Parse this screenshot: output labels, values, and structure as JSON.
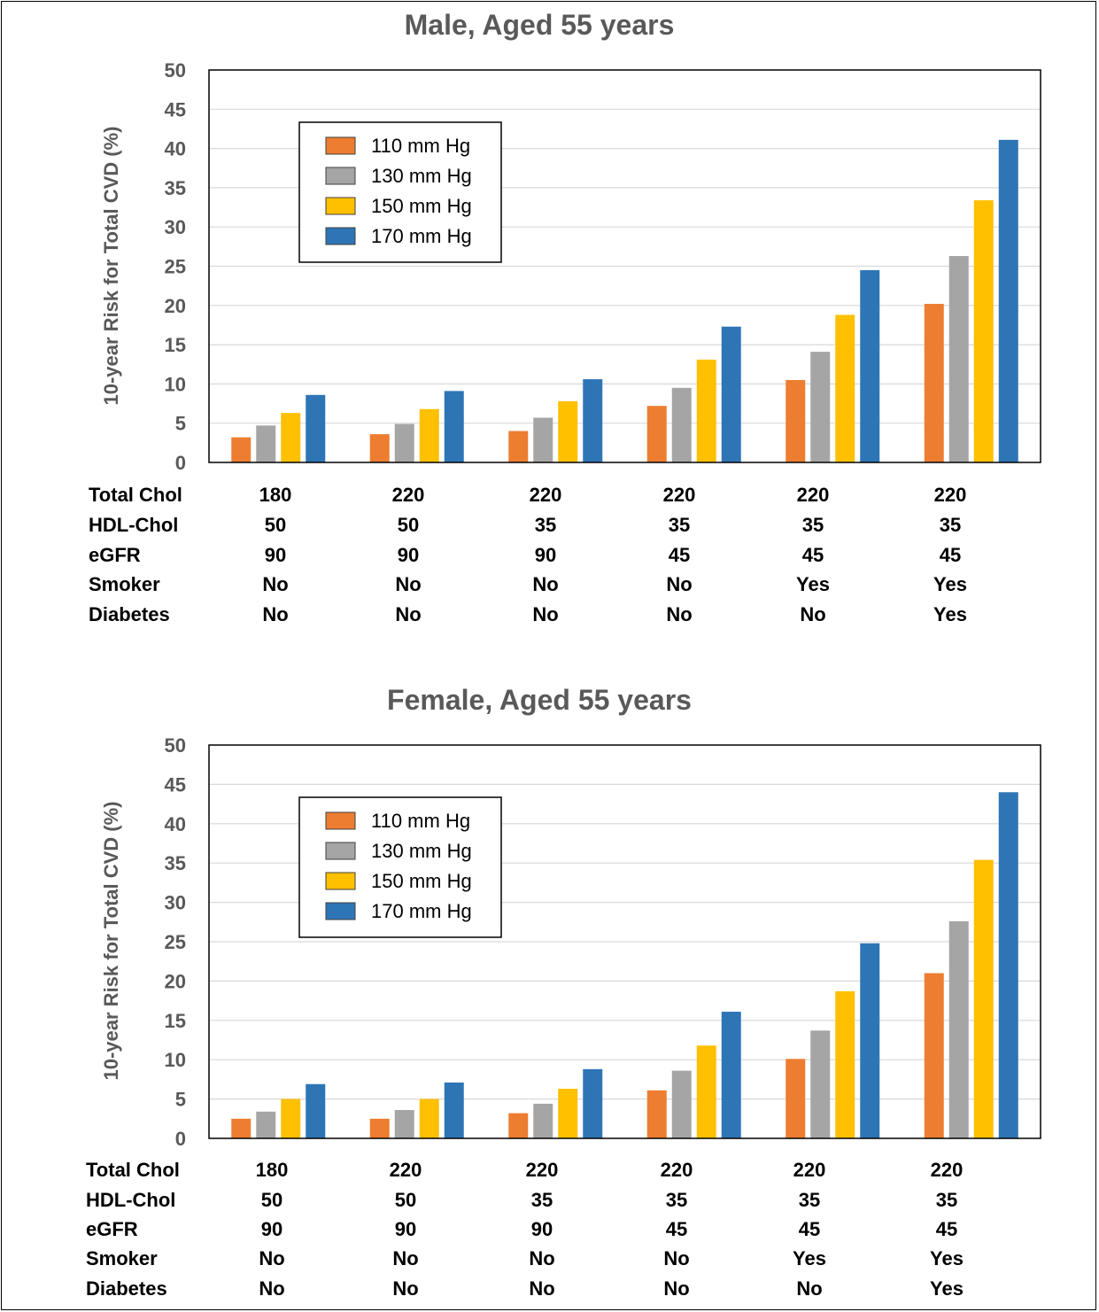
{
  "colors": {
    "110 mm Hg": "#ED7D31",
    "130 mm Hg": "#A5A5A5",
    "150 mm Hg": "#FFC000",
    "170 mm Hg": "#2E75B6"
  },
  "chart_data": [
    {
      "type": "bar",
      "title": "Male, Aged 55 years",
      "ylabel": "10-year Risk for Total CVD (%)",
      "ylim": [
        0,
        50
      ],
      "yticks": [
        0,
        5,
        10,
        15,
        20,
        25,
        30,
        35,
        40,
        45,
        50
      ],
      "grid": true,
      "legend_position": "upper-left",
      "categories": [
        "1",
        "2",
        "3",
        "4",
        "5",
        "6"
      ],
      "series": [
        {
          "name": "110 mm Hg",
          "values": [
            3.2,
            3.6,
            4.0,
            7.2,
            10.5,
            20.2
          ]
        },
        {
          "name": "130 mm Hg",
          "values": [
            4.7,
            4.9,
            5.7,
            9.5,
            14.1,
            26.3
          ]
        },
        {
          "name": "150 mm Hg",
          "values": [
            6.3,
            6.8,
            7.8,
            13.1,
            18.8,
            33.4
          ]
        },
        {
          "name": "170 mm Hg",
          "values": [
            8.6,
            9.1,
            10.6,
            17.3,
            24.5,
            41.1
          ]
        }
      ],
      "table": {
        "rows": [
          {
            "label": "Total Chol",
            "values": [
              "180",
              "220",
              "220",
              "220",
              "220",
              "220"
            ]
          },
          {
            "label": "HDL-Chol",
            "values": [
              "50",
              "50",
              "35",
              "35",
              "35",
              "35"
            ]
          },
          {
            "label": "eGFR",
            "values": [
              "90",
              "90",
              "90",
              "45",
              "45",
              "45"
            ]
          },
          {
            "label": "Smoker",
            "values": [
              "No",
              "No",
              "No",
              "No",
              "Yes",
              "Yes"
            ]
          },
          {
            "label": "Diabetes",
            "values": [
              "No",
              "No",
              "No",
              "No",
              "No",
              "Yes"
            ]
          }
        ]
      }
    },
    {
      "type": "bar",
      "title": "Female, Aged 55 years",
      "ylabel": "10-year Risk for Total CVD (%)",
      "ylim": [
        0,
        50
      ],
      "yticks": [
        0,
        5,
        10,
        15,
        20,
        25,
        30,
        35,
        40,
        45,
        50
      ],
      "grid": true,
      "legend_position": "upper-left",
      "categories": [
        "1",
        "2",
        "3",
        "4",
        "5",
        "6"
      ],
      "series": [
        {
          "name": "110 mm Hg",
          "values": [
            2.5,
            2.5,
            3.2,
            6.1,
            10.1,
            21.0
          ]
        },
        {
          "name": "130 mm Hg",
          "values": [
            3.4,
            3.6,
            4.4,
            8.6,
            13.7,
            27.6
          ]
        },
        {
          "name": "150 mm Hg",
          "values": [
            5.0,
            5.0,
            6.3,
            11.8,
            18.7,
            35.4
          ]
        },
        {
          "name": "170 mm Hg",
          "values": [
            6.9,
            7.1,
            8.8,
            16.1,
            24.8,
            44.0
          ]
        }
      ],
      "table": {
        "rows": [
          {
            "label": "Total Chol",
            "values": [
              "180",
              "220",
              "220",
              "220",
              "220",
              "220"
            ]
          },
          {
            "label": "HDL-Chol",
            "values": [
              "50",
              "50",
              "35",
              "35",
              "35",
              "35"
            ]
          },
          {
            "label": "eGFR",
            "values": [
              "90",
              "90",
              "90",
              "45",
              "45",
              "45"
            ]
          },
          {
            "label": "Smoker",
            "values": [
              "No",
              "No",
              "No",
              "No",
              "Yes",
              "Yes"
            ]
          },
          {
            "label": "Diabetes",
            "values": [
              "No",
              "No",
              "No",
              "No",
              "No",
              "Yes"
            ]
          }
        ]
      }
    }
  ]
}
